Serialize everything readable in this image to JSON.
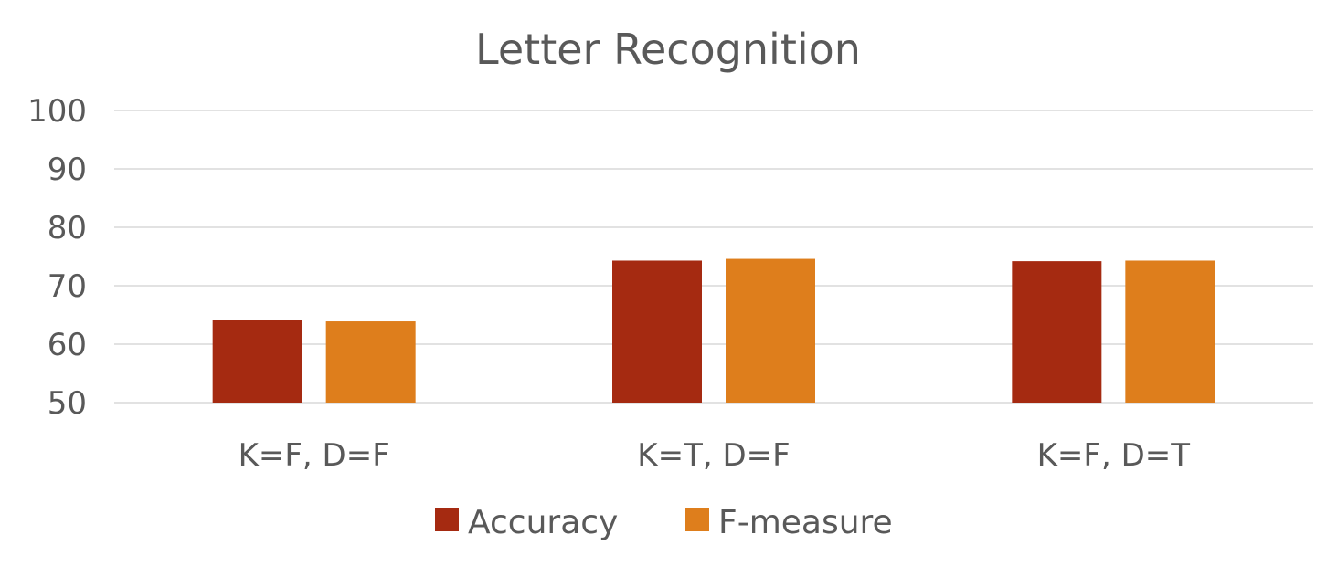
{
  "chart_data": {
    "type": "bar",
    "title": "Letter Recognition",
    "xlabel": "",
    "ylabel": "",
    "categories": [
      "K=F, D=F",
      "K=T, D=F",
      "K=F, D=T"
    ],
    "series": [
      {
        "name": "Accuracy",
        "values": [
          64.2,
          74.3,
          74.2
        ],
        "color": "#A52A11"
      },
      {
        "name": "F-measure",
        "values": [
          63.9,
          74.6,
          74.3
        ],
        "color": "#DE7E1C"
      }
    ],
    "ylim": [
      50,
      100
    ],
    "yticks": [
      "50",
      "60",
      "70",
      "80",
      "90",
      "100"
    ],
    "grid": true,
    "legend_position": "bottom"
  }
}
